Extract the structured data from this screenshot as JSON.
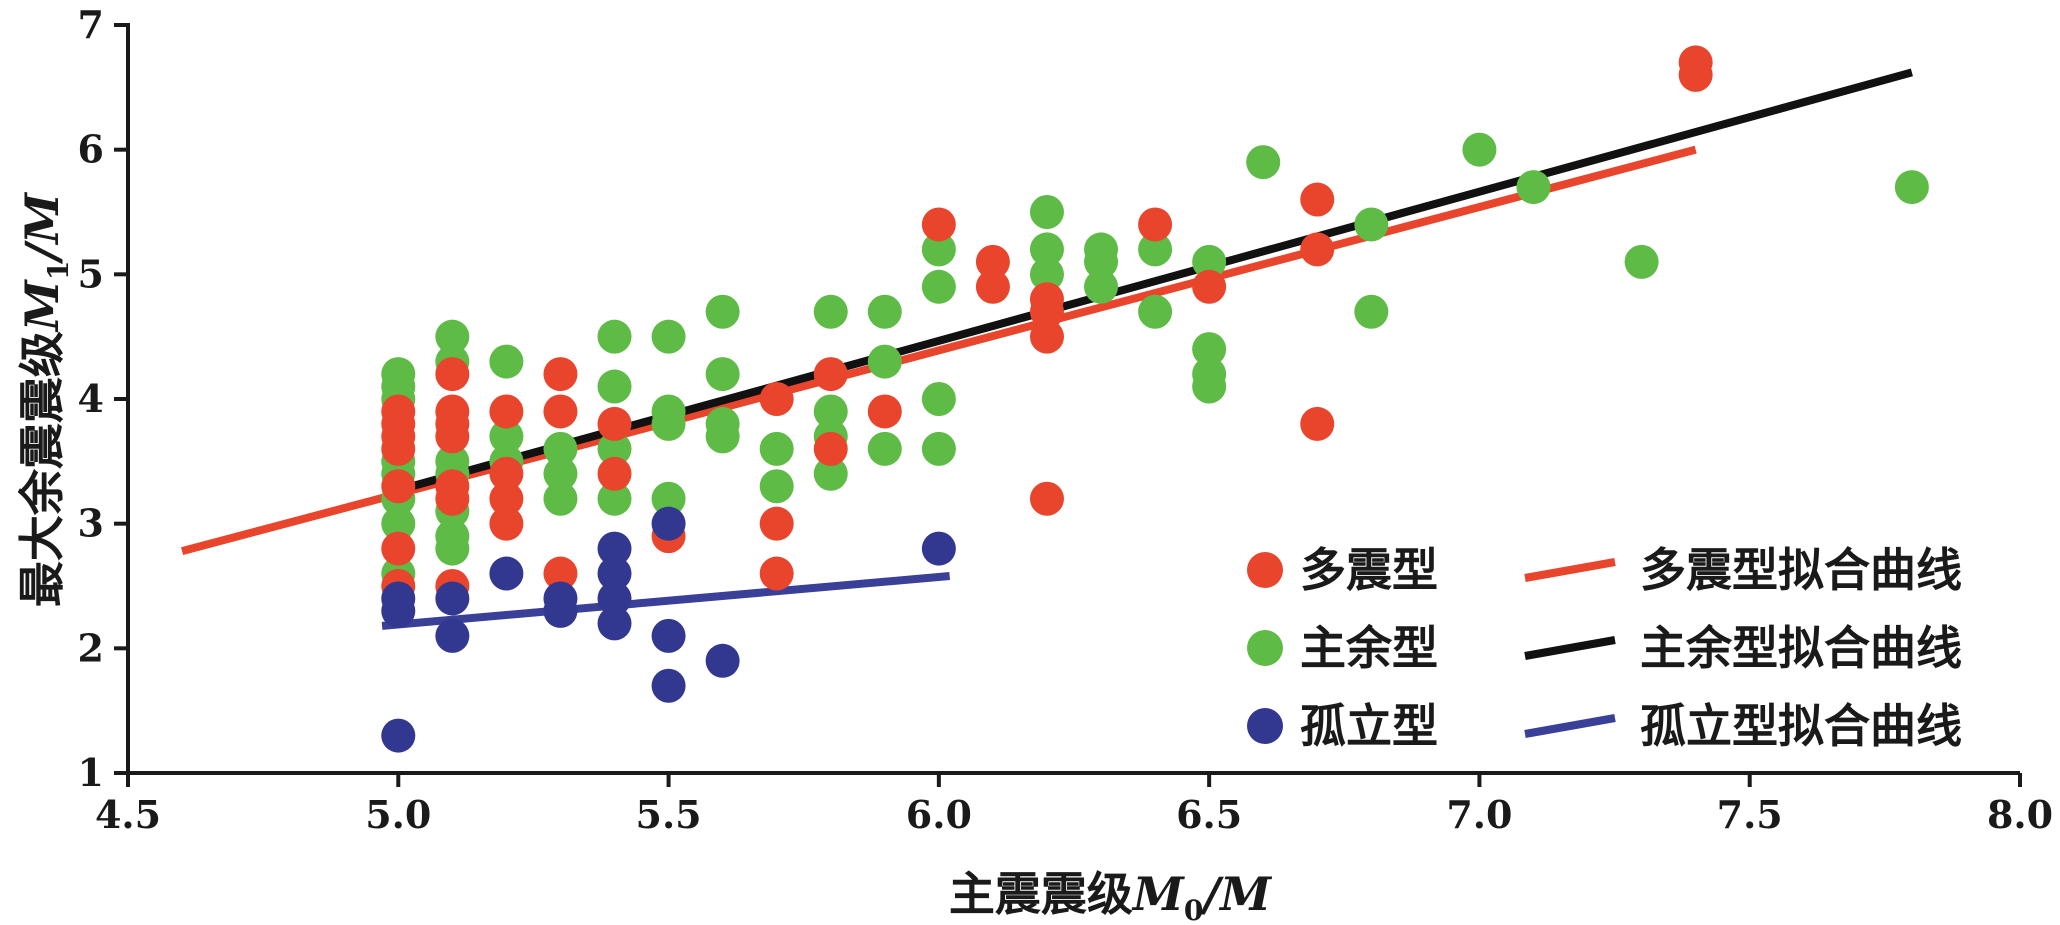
{
  "chart_data": {
    "type": "scatter",
    "xlabel": "主震震级",
    "xlabel_symbol": "M",
    "xlabel_sub": "0",
    "xlabel_unit": "/M",
    "ylabel": "最大余震震级",
    "ylabel_symbol": "M",
    "ylabel_sub": "1",
    "ylabel_unit": "/M",
    "xlim": [
      4.5,
      8.0
    ],
    "ylim": [
      1,
      7
    ],
    "xticks": [
      "4.5",
      "5.0",
      "5.5",
      "6.0",
      "6.5",
      "7.0",
      "7.5",
      "8.0"
    ],
    "yticks": [
      "1",
      "2",
      "3",
      "4",
      "5",
      "6",
      "7"
    ],
    "legend_position": "bottom-right",
    "series": [
      {
        "name": "多震型",
        "kind": "scatter",
        "color": "#e8452c",
        "points": [
          [
            5.0,
            3.9
          ],
          [
            5.0,
            3.8
          ],
          [
            5.0,
            3.7
          ],
          [
            5.0,
            3.6
          ],
          [
            5.0,
            3.3
          ],
          [
            5.0,
            2.8
          ],
          [
            5.0,
            2.5
          ],
          [
            5.1,
            4.2
          ],
          [
            5.1,
            3.9
          ],
          [
            5.1,
            3.8
          ],
          [
            5.1,
            3.7
          ],
          [
            5.1,
            3.3
          ],
          [
            5.1,
            3.2
          ],
          [
            5.1,
            2.5
          ],
          [
            5.2,
            3.9
          ],
          [
            5.2,
            3.4
          ],
          [
            5.2,
            3.2
          ],
          [
            5.2,
            3.0
          ],
          [
            5.3,
            4.2
          ],
          [
            5.3,
            3.9
          ],
          [
            5.3,
            2.6
          ],
          [
            5.4,
            3.8
          ],
          [
            5.4,
            3.4
          ],
          [
            5.5,
            2.9
          ],
          [
            5.7,
            4.0
          ],
          [
            5.7,
            3.0
          ],
          [
            5.7,
            2.6
          ],
          [
            5.8,
            4.2
          ],
          [
            5.8,
            3.6
          ],
          [
            5.9,
            3.9
          ],
          [
            6.0,
            5.4
          ],
          [
            6.1,
            5.1
          ],
          [
            6.1,
            4.9
          ],
          [
            6.2,
            4.8
          ],
          [
            6.2,
            4.7
          ],
          [
            6.2,
            4.5
          ],
          [
            6.2,
            3.2
          ],
          [
            6.4,
            5.4
          ],
          [
            6.5,
            4.9
          ],
          [
            6.7,
            5.6
          ],
          [
            6.7,
            5.2
          ],
          [
            6.7,
            3.8
          ],
          [
            7.4,
            6.7
          ],
          [
            7.4,
            6.6
          ]
        ]
      },
      {
        "name": "主余型",
        "kind": "scatter",
        "color": "#5dbb46",
        "points": [
          [
            5.0,
            4.2
          ],
          [
            5.0,
            4.1
          ],
          [
            5.0,
            4.0
          ],
          [
            5.0,
            3.5
          ],
          [
            5.0,
            3.4
          ],
          [
            5.0,
            3.2
          ],
          [
            5.0,
            3.0
          ],
          [
            5.0,
            2.6
          ],
          [
            5.1,
            4.5
          ],
          [
            5.1,
            4.3
          ],
          [
            5.1,
            3.5
          ],
          [
            5.1,
            3.4
          ],
          [
            5.1,
            3.1
          ],
          [
            5.1,
            2.9
          ],
          [
            5.1,
            2.8
          ],
          [
            5.2,
            4.3
          ],
          [
            5.2,
            3.7
          ],
          [
            5.2,
            3.5
          ],
          [
            5.3,
            3.6
          ],
          [
            5.3,
            3.4
          ],
          [
            5.3,
            3.2
          ],
          [
            5.4,
            4.5
          ],
          [
            5.4,
            4.1
          ],
          [
            5.4,
            3.6
          ],
          [
            5.4,
            3.2
          ],
          [
            5.5,
            4.5
          ],
          [
            5.5,
            3.9
          ],
          [
            5.5,
            3.8
          ],
          [
            5.5,
            3.2
          ],
          [
            5.6,
            4.7
          ],
          [
            5.6,
            4.2
          ],
          [
            5.6,
            3.8
          ],
          [
            5.6,
            3.7
          ],
          [
            5.7,
            3.6
          ],
          [
            5.7,
            3.3
          ],
          [
            5.8,
            4.7
          ],
          [
            5.8,
            3.9
          ],
          [
            5.8,
            3.7
          ],
          [
            5.8,
            3.4
          ],
          [
            5.9,
            4.7
          ],
          [
            5.9,
            4.3
          ],
          [
            5.9,
            3.6
          ],
          [
            6.0,
            5.2
          ],
          [
            6.0,
            4.9
          ],
          [
            6.0,
            4.0
          ],
          [
            6.0,
            3.6
          ],
          [
            6.2,
            5.5
          ],
          [
            6.2,
            5.2
          ],
          [
            6.2,
            5.0
          ],
          [
            6.3,
            5.2
          ],
          [
            6.3,
            5.1
          ],
          [
            6.3,
            4.9
          ],
          [
            6.4,
            5.2
          ],
          [
            6.4,
            4.7
          ],
          [
            6.5,
            5.1
          ],
          [
            6.5,
            4.4
          ],
          [
            6.5,
            4.2
          ],
          [
            6.5,
            4.1
          ],
          [
            6.6,
            5.9
          ],
          [
            6.8,
            5.4
          ],
          [
            6.8,
            4.7
          ],
          [
            7.0,
            6.0
          ],
          [
            7.1,
            5.7
          ],
          [
            7.3,
            5.1
          ],
          [
            7.8,
            5.7
          ]
        ]
      },
      {
        "name": "孤立型",
        "kind": "scatter",
        "color": "#32378f",
        "points": [
          [
            5.0,
            2.4
          ],
          [
            5.0,
            2.3
          ],
          [
            5.0,
            1.3
          ],
          [
            5.1,
            2.4
          ],
          [
            5.1,
            2.1
          ],
          [
            5.2,
            2.6
          ],
          [
            5.3,
            2.4
          ],
          [
            5.3,
            2.3
          ],
          [
            5.4,
            2.8
          ],
          [
            5.4,
            2.6
          ],
          [
            5.4,
            2.4
          ],
          [
            5.4,
            2.2
          ],
          [
            5.5,
            3.0
          ],
          [
            5.5,
            2.1
          ],
          [
            5.5,
            1.7
          ],
          [
            5.6,
            1.9
          ],
          [
            6.0,
            2.8
          ]
        ]
      },
      {
        "name": "多震型拟合曲线",
        "kind": "line",
        "color": "#e8452c",
        "x": [
          4.6,
          7.4
        ],
        "y": [
          2.78,
          6.0
        ]
      },
      {
        "name": "主余型拟合曲线",
        "kind": "line",
        "color": "#111111",
        "x": [
          5.0,
          7.8
        ],
        "y": [
          3.27,
          6.62
        ]
      },
      {
        "name": "孤立型拟合曲线",
        "kind": "line",
        "color": "#3a3f98",
        "x": [
          4.97,
          6.02
        ],
        "y": [
          2.18,
          2.58
        ]
      }
    ]
  }
}
